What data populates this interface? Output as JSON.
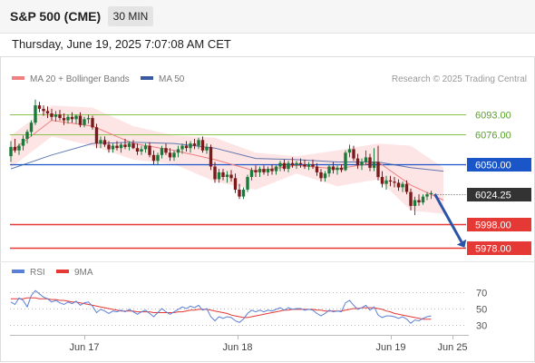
{
  "header": {
    "title": "S&P 500 (CME)",
    "timeframe": "30 MIN"
  },
  "datetime": "Thursday, June 19, 2025 7:07:08 AM CET",
  "legend": {
    "bollinger": "MA 20 + Bollinger Bands",
    "ma50": "MA 50",
    "copyright": "Research © 2025 Trading Central",
    "rsi": "RSI",
    "rsi_ma": "9MA"
  },
  "colors": {
    "up": "#1a7a3a",
    "down": "#7a1a1a",
    "bollinger": "#f08080",
    "band_fill": "#fde0e0",
    "ma50": "#3a5aa0",
    "green_level": "#8bc34a",
    "blue_level": "#1a56c8",
    "red_level": "#e53935",
    "rsi": "#5b7fd6",
    "rsi_ma": "#e53935",
    "arrow": "#2a54a8"
  },
  "chart_data": [
    {
      "type": "candlestick",
      "x_ticks": [
        "Jun 17",
        "Jun 18",
        "Jun 19",
        "Jun 25"
      ],
      "y_ticks": [
        "6093.00",
        "6076.00",
        "6050.00",
        "6024.25",
        "5998.00",
        "5978.00"
      ],
      "ylim": [
        5970,
        6105
      ],
      "levels": [
        {
          "value": 6093.0,
          "label": "6093.00",
          "style": "green"
        },
        {
          "value": 6076.0,
          "label": "6076.00",
          "style": "green"
        },
        {
          "value": 6050.0,
          "label": "6050.00",
          "style": "blue"
        },
        {
          "value": 6024.25,
          "label": "6024.25",
          "style": "current"
        },
        {
          "value": 5998.0,
          "label": "5998.00",
          "style": "red"
        },
        {
          "value": 5978.0,
          "label": "5978.00",
          "style": "red"
        }
      ],
      "forecast_arrow": {
        "from": 6024.25,
        "to": 5978.0
      },
      "candles": [
        [
          6057,
          6070,
          6052,
          6065
        ],
        [
          6065,
          6072,
          6060,
          6062
        ],
        [
          6062,
          6068,
          6058,
          6066
        ],
        [
          6066,
          6075,
          6062,
          6072
        ],
        [
          6072,
          6080,
          6068,
          6078
        ],
        [
          6078,
          6088,
          6074,
          6086
        ],
        [
          6086,
          6106,
          6084,
          6101
        ],
        [
          6101,
          6104,
          6095,
          6098
        ],
        [
          6098,
          6101,
          6092,
          6096
        ],
        [
          6096,
          6100,
          6090,
          6094
        ],
        [
          6094,
          6098,
          6088,
          6091
        ],
        [
          6091,
          6096,
          6087,
          6093
        ],
        [
          6093,
          6097,
          6088,
          6090
        ],
        [
          6090,
          6094,
          6084,
          6088
        ],
        [
          6088,
          6093,
          6085,
          6091
        ],
        [
          6091,
          6095,
          6086,
          6089
        ],
        [
          6089,
          6093,
          6085,
          6092
        ],
        [
          6092,
          6095,
          6082,
          6084
        ],
        [
          6084,
          6091,
          6082,
          6089
        ],
        [
          6089,
          6093,
          6085,
          6090
        ],
        [
          6090,
          6092,
          6080,
          6082
        ],
        [
          6082,
          6085,
          6064,
          6068
        ],
        [
          6068,
          6074,
          6064,
          6071
        ],
        [
          6071,
          6074,
          6065,
          6067
        ],
        [
          6067,
          6070,
          6060,
          6063
        ],
        [
          6063,
          6068,
          6060,
          6066
        ],
        [
          6066,
          6070,
          6062,
          6064
        ],
        [
          6064,
          6069,
          6060,
          6067
        ],
        [
          6067,
          6072,
          6063,
          6065
        ],
        [
          6065,
          6070,
          6062,
          6068
        ],
        [
          6068,
          6071,
          6063,
          6064
        ],
        [
          6064,
          6068,
          6058,
          6061
        ],
        [
          6061,
          6066,
          6058,
          6063
        ],
        [
          6063,
          6068,
          6060,
          6066
        ],
        [
          6066,
          6069,
          6056,
          6058
        ],
        [
          6058,
          6062,
          6050,
          6053
        ],
        [
          6053,
          6060,
          6050,
          6058
        ],
        [
          6058,
          6066,
          6055,
          6064
        ],
        [
          6064,
          6068,
          6058,
          6060
        ],
        [
          6060,
          6064,
          6053,
          6056
        ],
        [
          6056,
          6062,
          6053,
          6060
        ],
        [
          6060,
          6066,
          6056,
          6063
        ],
        [
          6063,
          6068,
          6059,
          6066
        ],
        [
          6066,
          6070,
          6061,
          6064
        ],
        [
          6064,
          6070,
          6060,
          6068
        ],
        [
          6068,
          6072,
          6063,
          6066
        ],
        [
          6066,
          6073,
          6063,
          6071
        ],
        [
          6071,
          6074,
          6060,
          6062
        ],
        [
          6062,
          6068,
          6059,
          6065
        ],
        [
          6065,
          6067,
          6045,
          6048
        ],
        [
          6048,
          6052,
          6034,
          6037
        ],
        [
          6037,
          6046,
          6034,
          6043
        ],
        [
          6043,
          6046,
          6036,
          6039
        ],
        [
          6039,
          6044,
          6034,
          6041
        ],
        [
          6041,
          6045,
          6035,
          6038
        ],
        [
          6038,
          6042,
          6025,
          6028
        ],
        [
          6028,
          6033,
          6020,
          6022
        ],
        [
          6022,
          6030,
          6020,
          6028
        ],
        [
          6028,
          6041,
          6026,
          6039
        ],
        [
          6039,
          6047,
          6036,
          6045
        ],
        [
          6045,
          6049,
          6039,
          6043
        ],
        [
          6043,
          6048,
          6039,
          6046
        ],
        [
          6046,
          6049,
          6041,
          6043
        ],
        [
          6043,
          6048,
          6040,
          6046
        ],
        [
          6046,
          6050,
          6041,
          6044
        ],
        [
          6044,
          6049,
          6041,
          6048
        ],
        [
          6048,
          6053,
          6044,
          6051
        ],
        [
          6051,
          6054,
          6044,
          6046
        ],
        [
          6046,
          6053,
          6043,
          6051
        ],
        [
          6051,
          6056,
          6047,
          6049
        ],
        [
          6049,
          6053,
          6046,
          6051
        ],
        [
          6051,
          6055,
          6047,
          6050
        ],
        [
          6050,
          6054,
          6046,
          6048
        ],
        [
          6048,
          6052,
          6045,
          6050
        ],
        [
          6050,
          6054,
          6046,
          6048
        ],
        [
          6048,
          6051,
          6040,
          6043
        ],
        [
          6043,
          6046,
          6035,
          6038
        ],
        [
          6038,
          6044,
          6035,
          6042
        ],
        [
          6042,
          6050,
          6039,
          6048
        ],
        [
          6048,
          6052,
          6042,
          6045
        ],
        [
          6045,
          6049,
          6041,
          6047
        ],
        [
          6047,
          6050,
          6043,
          6045
        ],
        [
          6045,
          6062,
          6044,
          6060
        ],
        [
          6060,
          6067,
          6056,
          6063
        ],
        [
          6063,
          6066,
          6053,
          6055
        ],
        [
          6055,
          6059,
          6046,
          6049
        ],
        [
          6049,
          6055,
          6045,
          6052
        ],
        [
          6052,
          6062,
          6050,
          6056
        ],
        [
          6056,
          6059,
          6044,
          6047
        ],
        [
          6047,
          6064,
          6044,
          6052
        ],
        [
          6052,
          6066,
          6036,
          6039
        ],
        [
          6039,
          6044,
          6030,
          6033
        ],
        [
          6033,
          6040,
          6028,
          6036
        ],
        [
          6036,
          6040,
          6031,
          6035
        ],
        [
          6035,
          6039,
          6030,
          6034
        ],
        [
          6034,
          6037,
          6027,
          6030
        ],
        [
          6030,
          6035,
          6026,
          6033
        ],
        [
          6033,
          6036,
          6024,
          6026
        ],
        [
          6026,
          6029,
          6010,
          6014
        ],
        [
          6014,
          6022,
          6006,
          6019
        ],
        [
          6019,
          6024,
          6014,
          6017
        ],
        [
          6017,
          6024,
          6015,
          6022
        ],
        [
          6022,
          6026,
          6019,
          6024
        ],
        [
          6024,
          6027,
          6020,
          6025
        ]
      ],
      "bollinger": {
        "middle": [
          [
            0,
            6061
          ],
          [
            10,
            6088
          ],
          [
            20,
            6083
          ],
          [
            30,
            6068
          ],
          [
            40,
            6062
          ],
          [
            50,
            6054
          ],
          [
            60,
            6044
          ],
          [
            70,
            6049
          ],
          [
            80,
            6046
          ],
          [
            90,
            6052
          ],
          [
            98,
            6032
          ],
          [
            106,
            6019
          ]
        ],
        "upper": [
          [
            0,
            6075
          ],
          [
            10,
            6101
          ],
          [
            20,
            6099
          ],
          [
            30,
            6083
          ],
          [
            40,
            6075
          ],
          [
            50,
            6073
          ],
          [
            60,
            6060
          ],
          [
            70,
            6057
          ],
          [
            80,
            6062
          ],
          [
            90,
            6068
          ],
          [
            98,
            6066
          ],
          [
            106,
            6047
          ]
        ],
        "lower": [
          [
            0,
            6047
          ],
          [
            10,
            6074
          ],
          [
            20,
            6066
          ],
          [
            30,
            6054
          ],
          [
            40,
            6050
          ],
          [
            50,
            6035
          ],
          [
            60,
            6028
          ],
          [
            70,
            6042
          ],
          [
            80,
            6031
          ],
          [
            90,
            6037
          ],
          [
            98,
            6010
          ],
          [
            106,
            6007
          ]
        ]
      },
      "ma50": [
        [
          0,
          6046
        ],
        [
          10,
          6058
        ],
        [
          20,
          6068
        ],
        [
          30,
          6069
        ],
        [
          40,
          6068
        ],
        [
          50,
          6064
        ],
        [
          60,
          6055
        ],
        [
          70,
          6054
        ],
        [
          80,
          6052
        ],
        [
          90,
          6052
        ],
        [
          98,
          6047
        ],
        [
          106,
          6044
        ]
      ]
    },
    {
      "type": "line",
      "series": [
        {
          "name": "RSI",
          "values": [
            58,
            55,
            63,
            60,
            52,
            66,
            72,
            68,
            64,
            62,
            58,
            60,
            57,
            55,
            58,
            56,
            59,
            54,
            57,
            58,
            53,
            45,
            49,
            47,
            44,
            47,
            46,
            48,
            46,
            49,
            46,
            43,
            46,
            48,
            44,
            40,
            45,
            50,
            46,
            43,
            46,
            49,
            52,
            50,
            53,
            51,
            54,
            48,
            50,
            40,
            35,
            40,
            38,
            40,
            39,
            35,
            33,
            37,
            44,
            48,
            46,
            48,
            46,
            48,
            47,
            49,
            51,
            48,
            51,
            49,
            50,
            50,
            48,
            49,
            48,
            44,
            41,
            44,
            48,
            46,
            47,
            46,
            57,
            60,
            54,
            49,
            51,
            54,
            48,
            52,
            42,
            39,
            41,
            41,
            40,
            38,
            40,
            37,
            32,
            36,
            35,
            38,
            40,
            41
          ]
        },
        {
          "name": "9MA",
          "values": [
            62,
            62,
            62,
            62,
            63,
            63,
            63,
            62,
            62,
            62,
            61,
            61,
            60,
            60,
            59,
            58,
            58,
            57,
            56,
            55,
            54,
            53,
            52,
            51,
            50,
            49,
            48,
            47,
            47,
            47,
            47,
            46,
            46,
            46,
            46,
            45,
            45,
            45,
            45,
            45,
            45,
            46,
            46,
            47,
            48,
            48,
            49,
            49,
            49,
            48,
            47,
            46,
            45,
            44,
            42,
            41,
            40,
            39,
            39,
            40,
            41,
            42,
            43,
            44,
            45,
            46,
            47,
            48,
            48,
            49,
            49,
            49,
            49,
            49,
            49,
            48,
            48,
            47,
            47,
            47,
            47,
            47,
            48,
            49,
            50,
            50,
            51,
            51,
            51,
            51,
            50,
            49,
            47,
            46,
            44,
            43,
            42,
            41,
            40,
            39,
            38,
            37,
            37,
            37
          ]
        }
      ],
      "y_ticks": [
        "70",
        "50",
        "30"
      ],
      "ylim": [
        20,
        80
      ]
    }
  ]
}
